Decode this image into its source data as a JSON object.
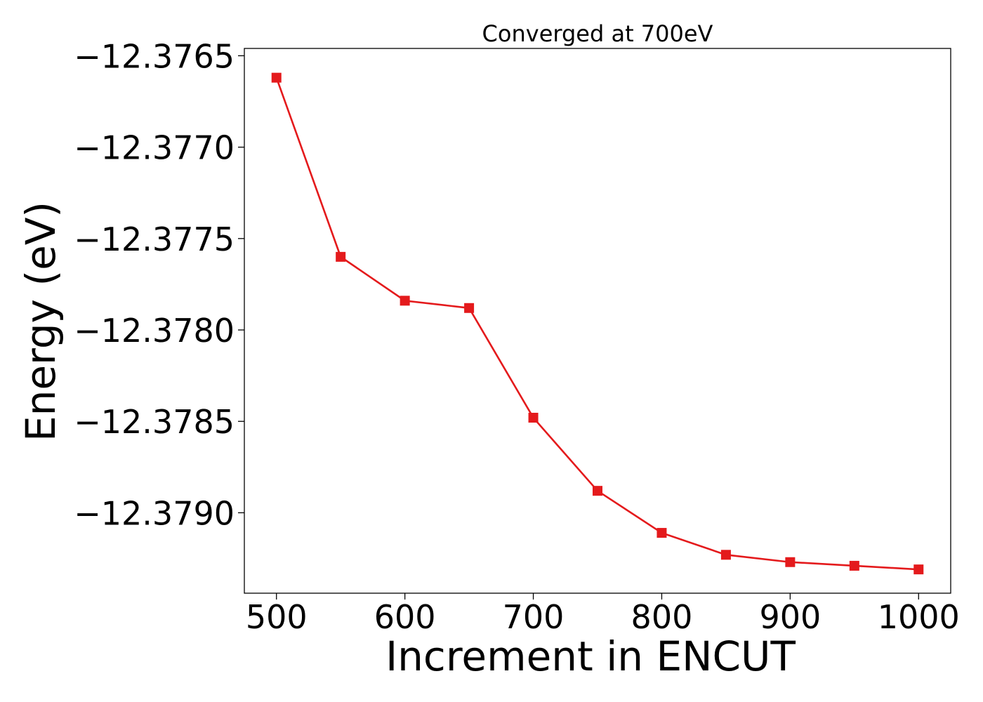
{
  "chart_data": {
    "type": "line",
    "title": "Converged at 700eV",
    "xlabel": "Increment in ENCUT",
    "ylabel": "Energy (eV)",
    "xlim": [
      475,
      1025
    ],
    "ylim": [
      -12.37944,
      -12.37646
    ],
    "x_ticks": [
      500,
      600,
      700,
      800,
      900,
      1000
    ],
    "x_tick_labels": [
      "500",
      "600",
      "700",
      "800",
      "900",
      "1000"
    ],
    "y_ticks": [
      -12.3765,
      -12.377,
      -12.3775,
      -12.378,
      -12.3785,
      -12.379
    ],
    "y_tick_labels": [
      "−12.3765",
      "−12.3770",
      "−12.3775",
      "−12.3780",
      "−12.3785",
      "−12.3790"
    ],
    "grid": false,
    "legend": "none",
    "series": [
      {
        "color": "#e41a1c",
        "marker": "square",
        "x": [
          500,
          550,
          600,
          650,
          700,
          750,
          800,
          850,
          900,
          950,
          1000
        ],
        "y": [
          -12.37662,
          -12.3776,
          -12.37784,
          -12.37788,
          -12.37848,
          -12.37888,
          -12.37911,
          -12.37923,
          -12.37927,
          -12.37929,
          -12.37931
        ]
      }
    ]
  }
}
